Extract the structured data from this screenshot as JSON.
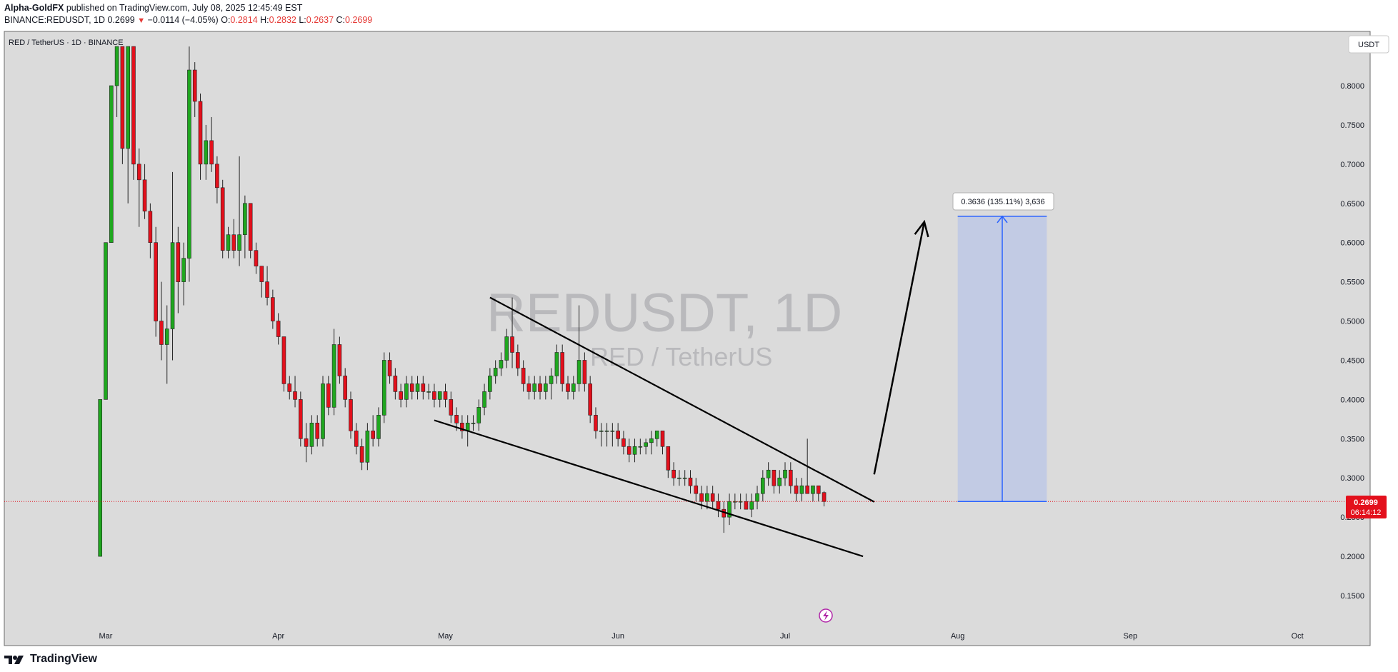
{
  "header": {
    "author": "Alpha-GoldFX",
    "published": "published on TradingView.com, July 08, 2025 12:45:49 EST",
    "symbol_line": "BINANCE:REDUSDT, 1D",
    "last": "0.2699",
    "change": "−0.0114 (−4.05%)",
    "o_label": "O:",
    "o": "0.2814",
    "h_label": "H:",
    "h": "0.2832",
    "l_label": "L:",
    "l": "0.2637",
    "c_label": "C:",
    "c": "0.2699"
  },
  "chart_title": "RED / TetherUS · 1D · BINANCE",
  "currency_button": "USDT",
  "watermark": {
    "symbol": "REDUSDT, 1D",
    "name": "RED / TetherUS"
  },
  "price_label": {
    "price": "0.2699",
    "countdown": "06:14:12"
  },
  "measure_label": "0.3636 (135.11%) 3,636",
  "footer": {
    "brand": "TradingView"
  },
  "colors": {
    "up": "#1fa71f",
    "down": "#e3101c",
    "background": "#dbdbdb",
    "accent": "#2962ff",
    "projection_fill": "#c2cbe4"
  },
  "chart_data": {
    "type": "candlestick",
    "ylim": [
      0.12,
      0.85
    ],
    "y_ticks": [
      "0.8000",
      "0.7500",
      "0.7000",
      "0.6500",
      "0.6000",
      "0.5500",
      "0.5000",
      "0.4500",
      "0.4000",
      "0.3500",
      "0.3000",
      "0.2500",
      "0.2000",
      "0.1500"
    ],
    "x_ticks": [
      {
        "label": "Mar",
        "date": "2025-03-01"
      },
      {
        "label": "Apr",
        "date": "2025-04-01"
      },
      {
        "label": "May",
        "date": "2025-05-01"
      },
      {
        "label": "Jun",
        "date": "2025-06-01"
      },
      {
        "label": "Jul",
        "date": "2025-07-01"
      },
      {
        "label": "Aug",
        "date": "2025-08-01"
      },
      {
        "label": "Sep",
        "date": "2025-09-01"
      },
      {
        "label": "Oct",
        "date": "2025-10-01"
      }
    ],
    "last_price": 0.2699,
    "candles": [
      [
        "2025-02-28",
        0.2,
        0.4,
        0.2,
        0.4
      ],
      [
        "2025-03-01",
        0.4,
        0.6,
        0.4,
        0.6
      ],
      [
        "2025-03-02",
        0.6,
        0.8,
        0.6,
        0.8
      ],
      [
        "2025-03-03",
        0.8,
        0.85,
        0.76,
        0.85
      ],
      [
        "2025-03-04",
        0.85,
        0.85,
        0.7,
        0.72
      ],
      [
        "2025-03-05",
        0.72,
        0.85,
        0.65,
        0.85
      ],
      [
        "2025-03-06",
        0.85,
        0.85,
        0.68,
        0.7
      ],
      [
        "2025-03-07",
        0.7,
        0.72,
        0.62,
        0.68
      ],
      [
        "2025-03-08",
        0.68,
        0.7,
        0.63,
        0.64
      ],
      [
        "2025-03-09",
        0.64,
        0.65,
        0.58,
        0.6
      ],
      [
        "2025-03-10",
        0.6,
        0.62,
        0.48,
        0.5
      ],
      [
        "2025-03-11",
        0.5,
        0.55,
        0.45,
        0.47
      ],
      [
        "2025-03-12",
        0.47,
        0.52,
        0.42,
        0.49
      ],
      [
        "2025-03-13",
        0.49,
        0.69,
        0.45,
        0.6
      ],
      [
        "2025-03-14",
        0.6,
        0.62,
        0.51,
        0.55
      ],
      [
        "2025-03-15",
        0.55,
        0.6,
        0.52,
        0.58
      ],
      [
        "2025-03-16",
        0.58,
        0.85,
        0.55,
        0.82
      ],
      [
        "2025-03-17",
        0.82,
        0.83,
        0.76,
        0.78
      ],
      [
        "2025-03-18",
        0.78,
        0.79,
        0.68,
        0.7
      ],
      [
        "2025-03-19",
        0.7,
        0.75,
        0.68,
        0.73
      ],
      [
        "2025-03-20",
        0.73,
        0.76,
        0.69,
        0.7
      ],
      [
        "2025-03-21",
        0.7,
        0.71,
        0.65,
        0.67
      ],
      [
        "2025-03-22",
        0.67,
        0.68,
        0.58,
        0.59
      ],
      [
        "2025-03-23",
        0.59,
        0.62,
        0.58,
        0.61
      ],
      [
        "2025-03-24",
        0.61,
        0.63,
        0.58,
        0.59
      ],
      [
        "2025-03-25",
        0.59,
        0.71,
        0.57,
        0.61
      ],
      [
        "2025-03-26",
        0.61,
        0.66,
        0.58,
        0.65
      ],
      [
        "2025-03-27",
        0.65,
        0.65,
        0.58,
        0.59
      ],
      [
        "2025-03-28",
        0.59,
        0.6,
        0.56,
        0.57
      ],
      [
        "2025-03-29",
        0.57,
        0.57,
        0.53,
        0.55
      ],
      [
        "2025-03-30",
        0.55,
        0.57,
        0.52,
        0.53
      ],
      [
        "2025-03-31",
        0.53,
        0.54,
        0.49,
        0.5
      ],
      [
        "2025-04-01",
        0.5,
        0.51,
        0.47,
        0.48
      ],
      [
        "2025-04-02",
        0.48,
        0.48,
        0.41,
        0.42
      ],
      [
        "2025-04-03",
        0.42,
        0.43,
        0.4,
        0.41
      ],
      [
        "2025-04-04",
        0.41,
        0.43,
        0.39,
        0.4
      ],
      [
        "2025-04-05",
        0.4,
        0.41,
        0.34,
        0.35
      ],
      [
        "2025-04-06",
        0.35,
        0.37,
        0.32,
        0.34
      ],
      [
        "2025-04-07",
        0.34,
        0.38,
        0.33,
        0.37
      ],
      [
        "2025-04-08",
        0.37,
        0.38,
        0.34,
        0.35
      ],
      [
        "2025-04-09",
        0.35,
        0.43,
        0.34,
        0.42
      ],
      [
        "2025-04-10",
        0.42,
        0.43,
        0.38,
        0.39
      ],
      [
        "2025-04-11",
        0.39,
        0.49,
        0.38,
        0.47
      ],
      [
        "2025-04-12",
        0.47,
        0.48,
        0.42,
        0.43
      ],
      [
        "2025-04-13",
        0.43,
        0.44,
        0.39,
        0.4
      ],
      [
        "2025-04-14",
        0.4,
        0.41,
        0.35,
        0.36
      ],
      [
        "2025-04-15",
        0.36,
        0.37,
        0.33,
        0.34
      ],
      [
        "2025-04-16",
        0.34,
        0.35,
        0.31,
        0.32
      ],
      [
        "2025-04-17",
        0.32,
        0.37,
        0.31,
        0.36
      ],
      [
        "2025-04-18",
        0.36,
        0.38,
        0.34,
        0.35
      ],
      [
        "2025-04-19",
        0.35,
        0.39,
        0.34,
        0.38
      ],
      [
        "2025-04-20",
        0.38,
        0.46,
        0.37,
        0.45
      ],
      [
        "2025-04-21",
        0.45,
        0.46,
        0.42,
        0.43
      ],
      [
        "2025-04-22",
        0.43,
        0.44,
        0.4,
        0.41
      ],
      [
        "2025-04-23",
        0.41,
        0.42,
        0.39,
        0.4
      ],
      [
        "2025-04-24",
        0.4,
        0.43,
        0.39,
        0.42
      ],
      [
        "2025-04-25",
        0.42,
        0.43,
        0.4,
        0.41
      ],
      [
        "2025-04-26",
        0.41,
        0.43,
        0.4,
        0.42
      ],
      [
        "2025-04-27",
        0.42,
        0.43,
        0.4,
        0.41
      ],
      [
        "2025-04-28",
        0.41,
        0.42,
        0.4,
        0.41
      ],
      [
        "2025-04-29",
        0.41,
        0.42,
        0.39,
        0.4
      ],
      [
        "2025-04-30",
        0.4,
        0.41,
        0.39,
        0.41
      ],
      [
        "2025-05-01",
        0.41,
        0.42,
        0.39,
        0.4
      ],
      [
        "2025-05-02",
        0.4,
        0.41,
        0.37,
        0.38
      ],
      [
        "2025-05-03",
        0.38,
        0.39,
        0.36,
        0.37
      ],
      [
        "2025-05-04",
        0.37,
        0.38,
        0.35,
        0.36
      ],
      [
        "2025-05-05",
        0.36,
        0.38,
        0.34,
        0.37
      ],
      [
        "2025-05-06",
        0.37,
        0.38,
        0.36,
        0.37
      ],
      [
        "2025-05-07",
        0.37,
        0.4,
        0.36,
        0.39
      ],
      [
        "2025-05-08",
        0.39,
        0.42,
        0.38,
        0.41
      ],
      [
        "2025-05-09",
        0.41,
        0.44,
        0.4,
        0.43
      ],
      [
        "2025-05-10",
        0.43,
        0.45,
        0.42,
        0.44
      ],
      [
        "2025-05-11",
        0.44,
        0.46,
        0.43,
        0.45
      ],
      [
        "2025-05-12",
        0.45,
        0.49,
        0.44,
        0.48
      ],
      [
        "2025-05-13",
        0.48,
        0.53,
        0.44,
        0.46
      ],
      [
        "2025-05-14",
        0.46,
        0.47,
        0.43,
        0.44
      ],
      [
        "2025-05-15",
        0.44,
        0.45,
        0.41,
        0.42
      ],
      [
        "2025-05-16",
        0.42,
        0.43,
        0.4,
        0.41
      ],
      [
        "2025-05-17",
        0.41,
        0.43,
        0.4,
        0.42
      ],
      [
        "2025-05-18",
        0.42,
        0.43,
        0.4,
        0.41
      ],
      [
        "2025-05-19",
        0.41,
        0.43,
        0.4,
        0.42
      ],
      [
        "2025-05-20",
        0.42,
        0.44,
        0.4,
        0.43
      ],
      [
        "2025-05-21",
        0.43,
        0.47,
        0.42,
        0.46
      ],
      [
        "2025-05-22",
        0.46,
        0.47,
        0.41,
        0.42
      ],
      [
        "2025-05-23",
        0.42,
        0.43,
        0.4,
        0.41
      ],
      [
        "2025-05-24",
        0.41,
        0.43,
        0.4,
        0.42
      ],
      [
        "2025-05-25",
        0.42,
        0.52,
        0.41,
        0.45
      ],
      [
        "2025-05-26",
        0.45,
        0.46,
        0.41,
        0.42
      ],
      [
        "2025-05-27",
        0.42,
        0.43,
        0.37,
        0.38
      ],
      [
        "2025-05-28",
        0.38,
        0.39,
        0.35,
        0.36
      ],
      [
        "2025-05-29",
        0.36,
        0.37,
        0.34,
        0.36
      ],
      [
        "2025-05-30",
        0.36,
        0.37,
        0.34,
        0.36
      ],
      [
        "2025-05-31",
        0.36,
        0.37,
        0.34,
        0.36
      ],
      [
        "2025-06-01",
        0.36,
        0.37,
        0.34,
        0.35
      ],
      [
        "2025-06-02",
        0.35,
        0.36,
        0.33,
        0.34
      ],
      [
        "2025-06-03",
        0.34,
        0.35,
        0.32,
        0.33
      ],
      [
        "2025-06-04",
        0.33,
        0.35,
        0.32,
        0.34
      ],
      [
        "2025-06-05",
        0.34,
        0.35,
        0.33,
        0.34
      ],
      [
        "2025-06-06",
        0.34,
        0.35,
        0.33,
        0.345
      ],
      [
        "2025-06-07",
        0.345,
        0.36,
        0.33,
        0.35
      ],
      [
        "2025-06-08",
        0.35,
        0.36,
        0.34,
        0.36
      ],
      [
        "2025-06-09",
        0.36,
        0.36,
        0.33,
        0.34
      ],
      [
        "2025-06-10",
        0.34,
        0.34,
        0.3,
        0.31
      ],
      [
        "2025-06-11",
        0.31,
        0.32,
        0.29,
        0.3
      ],
      [
        "2025-06-12",
        0.3,
        0.31,
        0.29,
        0.3
      ],
      [
        "2025-06-13",
        0.3,
        0.31,
        0.29,
        0.3
      ],
      [
        "2025-06-14",
        0.3,
        0.31,
        0.28,
        0.29
      ],
      [
        "2025-06-15",
        0.29,
        0.3,
        0.27,
        0.28
      ],
      [
        "2025-06-16",
        0.28,
        0.29,
        0.26,
        0.27
      ],
      [
        "2025-06-17",
        0.27,
        0.29,
        0.26,
        0.28
      ],
      [
        "2025-06-18",
        0.28,
        0.29,
        0.26,
        0.27
      ],
      [
        "2025-06-19",
        0.27,
        0.28,
        0.25,
        0.26
      ],
      [
        "2025-06-20",
        0.26,
        0.27,
        0.23,
        0.25
      ],
      [
        "2025-06-21",
        0.25,
        0.28,
        0.24,
        0.27
      ],
      [
        "2025-06-22",
        0.27,
        0.28,
        0.26,
        0.27
      ],
      [
        "2025-06-23",
        0.27,
        0.28,
        0.26,
        0.27
      ],
      [
        "2025-06-24",
        0.27,
        0.28,
        0.26,
        0.26
      ],
      [
        "2025-06-25",
        0.26,
        0.28,
        0.25,
        0.27
      ],
      [
        "2025-06-26",
        0.27,
        0.29,
        0.26,
        0.28
      ],
      [
        "2025-06-27",
        0.28,
        0.31,
        0.27,
        0.3
      ],
      [
        "2025-06-28",
        0.3,
        0.32,
        0.29,
        0.31
      ],
      [
        "2025-06-29",
        0.31,
        0.31,
        0.28,
        0.29
      ],
      [
        "2025-06-30",
        0.29,
        0.31,
        0.28,
        0.3
      ],
      [
        "2025-07-01",
        0.3,
        0.32,
        0.29,
        0.31
      ],
      [
        "2025-07-02",
        0.31,
        0.32,
        0.28,
        0.29
      ],
      [
        "2025-07-03",
        0.29,
        0.3,
        0.27,
        0.28
      ],
      [
        "2025-07-04",
        0.28,
        0.3,
        0.27,
        0.29
      ],
      [
        "2025-07-05",
        0.29,
        0.35,
        0.28,
        0.28
      ],
      [
        "2025-07-06",
        0.28,
        0.29,
        0.27,
        0.29
      ],
      [
        "2025-07-07",
        0.29,
        0.29,
        0.27,
        0.28
      ],
      [
        "2025-07-08",
        0.2814,
        0.2832,
        0.2637,
        0.2699
      ]
    ],
    "trendlines": [
      {
        "from": [
          "2025-05-09",
          0.53
        ],
        "to": [
          "2025-07-17",
          0.2695
        ]
      },
      {
        "from": [
          "2025-04-29",
          0.3735
        ],
        "to": [
          "2025-07-15",
          0.2
        ]
      }
    ],
    "arrow": {
      "from": [
        "2025-07-17",
        0.3045
      ],
      "to": [
        "2025-07-26",
        0.6265
      ]
    },
    "projection": {
      "x0": "2025-08-01",
      "x1": "2025-08-17",
      "y0": 0.2699,
      "y1": 0.6335
    }
  }
}
